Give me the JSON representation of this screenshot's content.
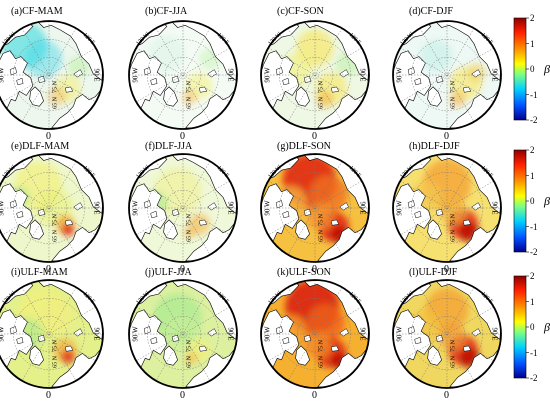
{
  "panels": [
    {
      "title": "(a)CF-MAM",
      "pattern": "CF-MAM"
    },
    {
      "title": "(b)CF-JJA",
      "pattern": "CF-JJA"
    },
    {
      "title": "(c)CF-SON",
      "pattern": "CF-SON"
    },
    {
      "title": "(d)CF-DJF",
      "pattern": "CF-DJF"
    },
    {
      "title": "(e)DLF-MAM",
      "pattern": "DLF-MAM"
    },
    {
      "title": "(f)DLF-JJA",
      "pattern": "DLF-JJA"
    },
    {
      "title": "(g)DLF-SON",
      "pattern": "DLF-SON"
    },
    {
      "title": "(h)DLF-DJF",
      "pattern": "DLF-DJF"
    },
    {
      "title": "(i)ULF-MAM",
      "pattern": "ULF-MAM"
    },
    {
      "title": "(j)ULF-JJA",
      "pattern": "ULF-JJA"
    },
    {
      "title": "(k)ULF-SON",
      "pattern": "ULF-SON"
    },
    {
      "title": "(l)ULF-DJF",
      "pattern": "ULF-DJF"
    }
  ],
  "map_labels": {
    "lon_left": "90 W",
    "lon_right": "90 E",
    "lon_bottom": "0",
    "lat_labels": [
      "75 N",
      "65 N"
    ],
    "lon_corner_left": "120 W",
    "lon_corner_right": "120 E"
  },
  "colorbar": {
    "unit": "β",
    "ticks": [
      "2",
      "1",
      "0",
      "-1",
      "-2"
    ],
    "range": [
      -2,
      2
    ],
    "colors": [
      "#00008f",
      "#0050ff",
      "#00d0ff",
      "#7fff80",
      "#ffff00",
      "#ff9000",
      "#ff2000",
      "#8f0000"
    ]
  },
  "colors": {
    "land": "#ffffff",
    "coast": "#000000",
    "grid": "#777777",
    "frame": "#000000"
  }
}
